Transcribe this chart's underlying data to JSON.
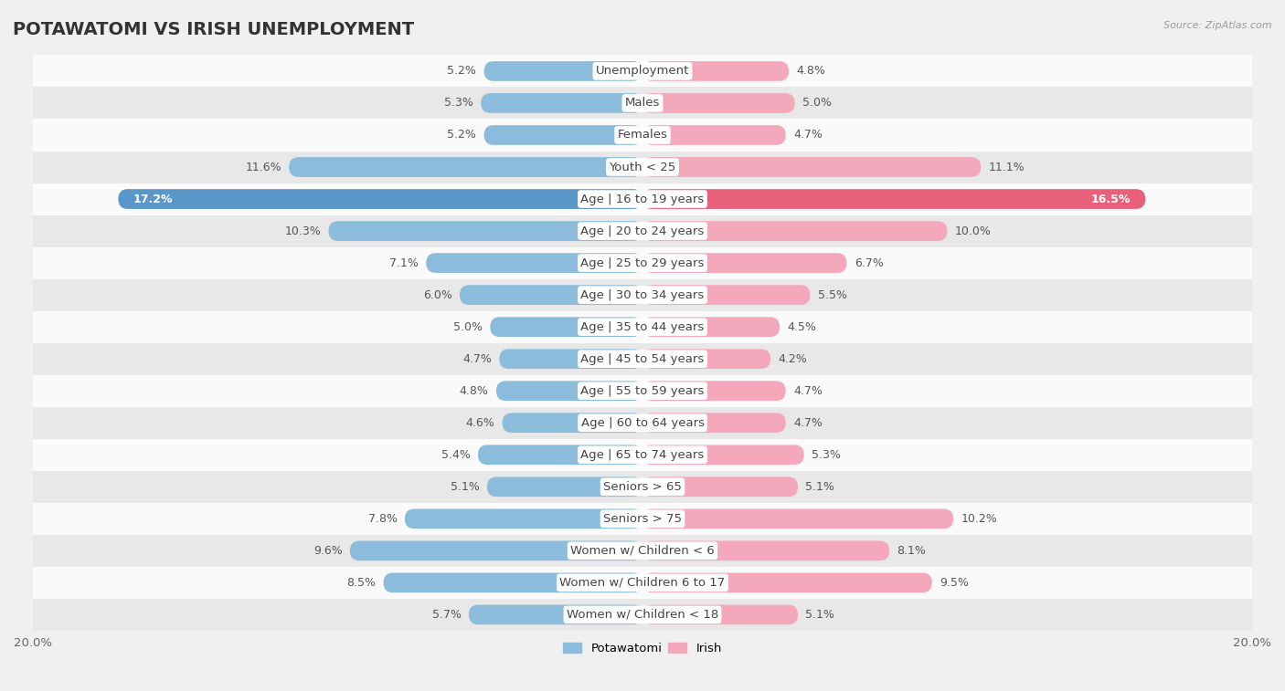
{
  "title": "POTAWATOMI VS IRISH UNEMPLOYMENT",
  "source": "Source: ZipAtlas.com",
  "categories": [
    "Unemployment",
    "Males",
    "Females",
    "Youth < 25",
    "Age | 16 to 19 years",
    "Age | 20 to 24 years",
    "Age | 25 to 29 years",
    "Age | 30 to 34 years",
    "Age | 35 to 44 years",
    "Age | 45 to 54 years",
    "Age | 55 to 59 years",
    "Age | 60 to 64 years",
    "Age | 65 to 74 years",
    "Seniors > 65",
    "Seniors > 75",
    "Women w/ Children < 6",
    "Women w/ Children 6 to 17",
    "Women w/ Children < 18"
  ],
  "potawatomi": [
    5.2,
    5.3,
    5.2,
    11.6,
    17.2,
    10.3,
    7.1,
    6.0,
    5.0,
    4.7,
    4.8,
    4.6,
    5.4,
    5.1,
    7.8,
    9.6,
    8.5,
    5.7
  ],
  "irish": [
    4.8,
    5.0,
    4.7,
    11.1,
    16.5,
    10.0,
    6.7,
    5.5,
    4.5,
    4.2,
    4.7,
    4.7,
    5.3,
    5.1,
    10.2,
    8.1,
    9.5,
    5.1
  ],
  "potawatomi_color": "#8bbcdb",
  "irish_color": "#f4a8bc",
  "highlight_potawatomi_color": "#5a96c8",
  "highlight_irish_color": "#e8607a",
  "bg_color": "#f0f0f0",
  "row_color_light": "#fafafa",
  "row_color_dark": "#e8e8e8",
  "max_val": 20.0,
  "title_fontsize": 14,
  "label_fontsize": 9.5,
  "tick_fontsize": 9.5,
  "value_fontsize": 9.0
}
